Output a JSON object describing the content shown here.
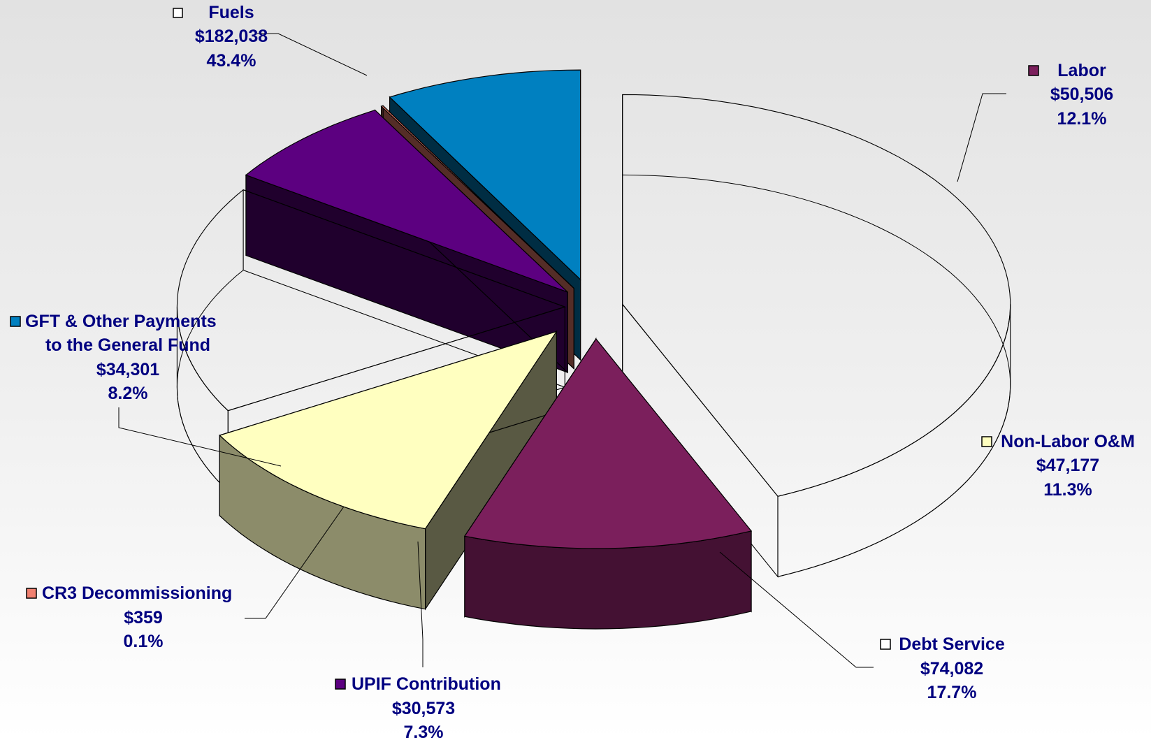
{
  "chart_data": {
    "type": "pie",
    "title": "",
    "slices": [
      {
        "label": "Fuels",
        "value": 182038,
        "value_label": "$182,038",
        "percent_label": "43.4%",
        "color": "#ffffff",
        "highlighted": false
      },
      {
        "label": "Labor",
        "value": 50506,
        "value_label": "$50,506",
        "percent_label": "12.1%",
        "color": "#7b1f5c",
        "highlighted": true
      },
      {
        "label": "Non-Labor O&M",
        "value": 47177,
        "value_label": "$47,177",
        "percent_label": "11.3%",
        "color": "#ffffc0",
        "highlighted": true
      },
      {
        "label": "Debt Service",
        "value": 74082,
        "value_label": "$74,082",
        "percent_label": "17.7%",
        "color": "#ffffff",
        "highlighted": false
      },
      {
        "label": "UPIF Contribution",
        "value": 30573,
        "value_label": "$30,573",
        "percent_label": "7.3%",
        "color": "#5c0080",
        "highlighted": true
      },
      {
        "label": "CR3 Decommissioning",
        "value": 359,
        "value_label": "$359",
        "percent_label": "0.1%",
        "color": "#f08070",
        "highlighted": true
      },
      {
        "label": "GFT & Other Payments to the General Fund",
        "label_lines": [
          "GFT & Other Payments",
          "to the General Fund"
        ],
        "value": 34301,
        "value_label": "$34,301",
        "percent_label": "8.2%",
        "color": "#0080c0",
        "highlighted": true
      }
    ]
  }
}
